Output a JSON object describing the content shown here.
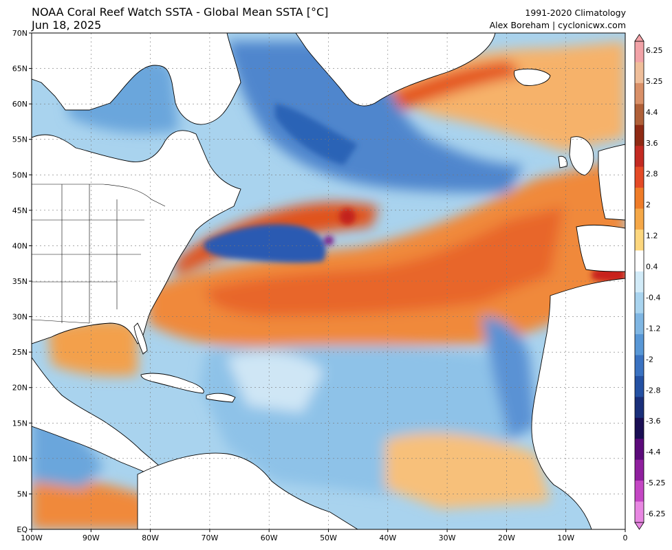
{
  "header": {
    "title": "NOAA Coral Reef Watch SSTA - Global Mean SSTA [°C]",
    "date": "Jun 18, 2025",
    "climatology": "1991-2020 Climatology",
    "credit": "Alex Boreham | cyclonicwx.com"
  },
  "map": {
    "lat_labels": [
      "70N",
      "65N",
      "60N",
      "55N",
      "50N",
      "45N",
      "40N",
      "35N",
      "30N",
      "25N",
      "20N",
      "15N",
      "10N",
      "5N",
      "EQ"
    ],
    "lon_labels": [
      "100W",
      "90W",
      "80W",
      "70W",
      "60W",
      "50W",
      "40W",
      "30W",
      "20W",
      "10W",
      "0"
    ],
    "ocean_colors": {
      "warm_strong": "#e4541a",
      "warm": "#f08a3a",
      "warm_light": "#f6b26b",
      "near_zero": "#ffffff",
      "cool_light": "#a9d3ee",
      "cool": "#6aa6dc",
      "cool_strong": "#2c63b6"
    }
  },
  "colorbar": {
    "labels": [
      "6.25",
      "5.25",
      "4.4",
      "3.6",
      "2.8",
      "2",
      "1.2",
      "0.4",
      "-0.4",
      "-1.2",
      "-2",
      "-2.8",
      "-3.6",
      "-4.4",
      "-5.25",
      "-6.25"
    ],
    "colors": [
      "#f2a3a8",
      "#efbe9a",
      "#d99068",
      "#b06038",
      "#8f2a14",
      "#c32a22",
      "#e44a26",
      "#ef7c28",
      "#f5a848",
      "#fdd77e",
      "#ffffff",
      "#d2ebf8",
      "#a9d4ef",
      "#7fb6e3",
      "#5897d6",
      "#3a72c1",
      "#2451a3",
      "#1a2f7a",
      "#1a0e54",
      "#5b0a7a",
      "#8f1f9e",
      "#c447c4",
      "#e887e2"
    ]
  }
}
